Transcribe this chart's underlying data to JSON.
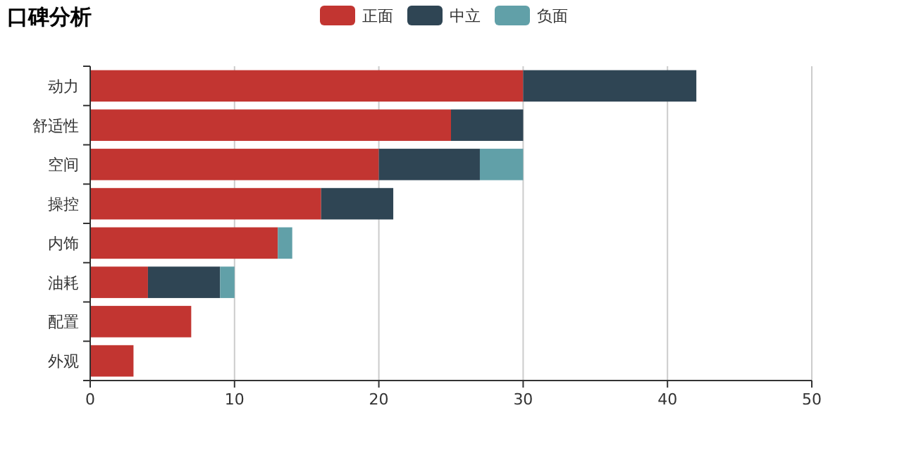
{
  "chart_data": {
    "type": "bar",
    "title": "口碑分析",
    "orientation": "horizontal",
    "stacked": true,
    "categories": [
      "动力",
      "舒适性",
      "空间",
      "操控",
      "内饰",
      "油耗",
      "配置",
      "外观"
    ],
    "series": [
      {
        "name": "正面",
        "color": "#c23531",
        "values": [
          30,
          25,
          20,
          16,
          13,
          4,
          7,
          3
        ]
      },
      {
        "name": "中立",
        "color": "#2f4554",
        "values": [
          12,
          5,
          7,
          5,
          null,
          5,
          null,
          null
        ]
      },
      {
        "name": "负面",
        "color": "#61a0a8",
        "values": [
          null,
          null,
          3,
          null,
          1,
          1,
          null,
          null
        ]
      }
    ],
    "xlim": [
      0,
      50
    ],
    "xticks": [
      0,
      10,
      20,
      30,
      40,
      50
    ],
    "grid": "x",
    "legend": "top"
  }
}
